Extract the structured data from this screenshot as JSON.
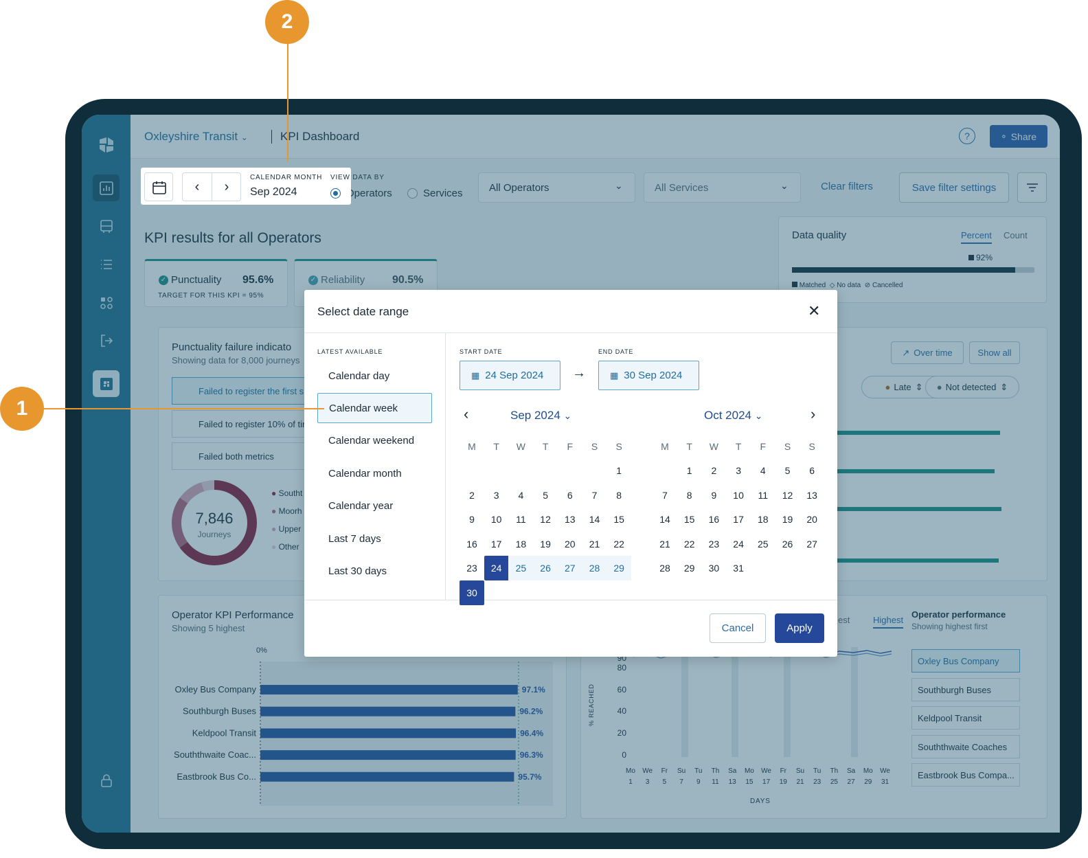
{
  "header": {
    "org": "Oxleyshire Transit",
    "title": "KPI Dashboard",
    "share": "Share"
  },
  "filters": {
    "period_caption": "CALENDAR MONTH",
    "period_value": "Sep 2024",
    "view_by_caption": "VIEW DATA BY",
    "view_operators": "Operators",
    "view_services": "Services",
    "operators_select": "All Operators",
    "services_select": "All Services",
    "clear": "Clear filters",
    "save": "Save filter settings"
  },
  "kpi": {
    "heading": "KPI results for all Operators",
    "punctuality_label": "Punctuality",
    "punctuality_value": "95.6%",
    "punctuality_target": "TARGET FOR THIS KPI = 95%",
    "reliability_label": "Reliability",
    "reliability_value": "90.5%"
  },
  "data_quality": {
    "title": "Data quality",
    "tab_percent": "Percent",
    "tab_count": "Count",
    "matched_pct": "92%",
    "matched_fraction": 0.92,
    "legend_matched": "Matched",
    "legend_nodata": "No data",
    "legend_cancelled": "Cancelled"
  },
  "failure": {
    "title": "Punctuality failure indicato",
    "subtitle": "Showing data for 8,000 journeys",
    "items": [
      "Failed to register the first s",
      "Failed to register 10% of tin",
      "Failed both metrics"
    ],
    "donut_value": "7,846",
    "donut_caption": "Journeys",
    "legend": [
      "Southt",
      "Moorh",
      "Upper",
      "Other"
    ]
  },
  "right_panel": {
    "over_time": "Over time",
    "show_all": "Show all",
    "late": "Late",
    "not_detected": "Not detected"
  },
  "operator_kpi": {
    "title": "Operator KPI Performance",
    "subtitle": "Showing 5 highest",
    "axis_zero": "0%"
  },
  "chart_data": {
    "type": "bar",
    "categories": [
      "Oxley Bus Company",
      "Southburgh Buses",
      "Keldpool Transit",
      "Souththwaite Coac...",
      "Eastbrook Bus Co..."
    ],
    "values": [
      97.1,
      96.2,
      96.4,
      96.3,
      95.7
    ],
    "value_labels": [
      "97.1%",
      "96.2%",
      "96.4%",
      "96.3%",
      "95.7%"
    ],
    "xlim": [
      0,
      100
    ]
  },
  "line_chart": {
    "tab_lowest": "est",
    "tab_highest": "Highest",
    "ylabel": "% REACHED",
    "xlabel": "DAYS",
    "yticks": [
      "90",
      "80",
      "60",
      "40",
      "20",
      "0"
    ],
    "xdays": [
      "Mo",
      "We",
      "Fr",
      "Su",
      "Tu",
      "Th",
      "Sa",
      "Mo",
      "We",
      "Fr",
      "Su",
      "Tu",
      "Th",
      "Sa",
      "Mo",
      "We"
    ],
    "xnums": [
      "1",
      "3",
      "5",
      "7",
      "9",
      "11",
      "13",
      "15",
      "17",
      "19",
      "21",
      "23",
      "25",
      "27",
      "29",
      "31"
    ]
  },
  "operator_perf": {
    "title": "Operator performance",
    "subtitle": "Showing highest first",
    "items": [
      "Oxley Bus Company",
      "Southburgh Buses",
      "Keldpool Transit",
      "Souththwaite Coaches",
      "Eastbrook Bus Compa..."
    ]
  },
  "modal": {
    "title": "Select date range",
    "latest_caption": "LATEST AVAILABLE",
    "presets": [
      "Calendar day",
      "Calendar week",
      "Calendar weekend",
      "Calendar month",
      "Calendar year",
      "Last 7 days",
      "Last 30 days"
    ],
    "start_caption": "START DATE",
    "end_caption": "END DATE",
    "start_value": "24 Sep 2024",
    "end_value": "30 Sep 2024",
    "left_month": "Sep 2024",
    "right_month": "Oct 2024",
    "weekdays": [
      "M",
      "T",
      "W",
      "T",
      "F",
      "S",
      "S"
    ],
    "sep_days": [
      "1",
      "2",
      "3",
      "4",
      "5",
      "6",
      "7",
      "8",
      "9",
      "10",
      "11",
      "12",
      "13",
      "14",
      "15",
      "16",
      "17",
      "18",
      "19",
      "20",
      "21",
      "22",
      "23",
      "24",
      "25",
      "26",
      "27",
      "28",
      "29",
      "30"
    ],
    "oct_days": [
      "1",
      "2",
      "3",
      "4",
      "5",
      "6",
      "7",
      "8",
      "9",
      "10",
      "11",
      "12",
      "13",
      "14",
      "15",
      "16",
      "17",
      "18",
      "19",
      "20",
      "21",
      "22",
      "23",
      "24",
      "25",
      "26",
      "27",
      "28",
      "29",
      "30",
      "31"
    ],
    "cancel": "Cancel",
    "apply": "Apply"
  },
  "annotations": {
    "badge1": "1",
    "badge2": "2"
  },
  "colors": {
    "accent": "#25489a",
    "sidebar": "#1f6d8f",
    "annotation": "#e8972f",
    "teal": "#1b8f85"
  }
}
